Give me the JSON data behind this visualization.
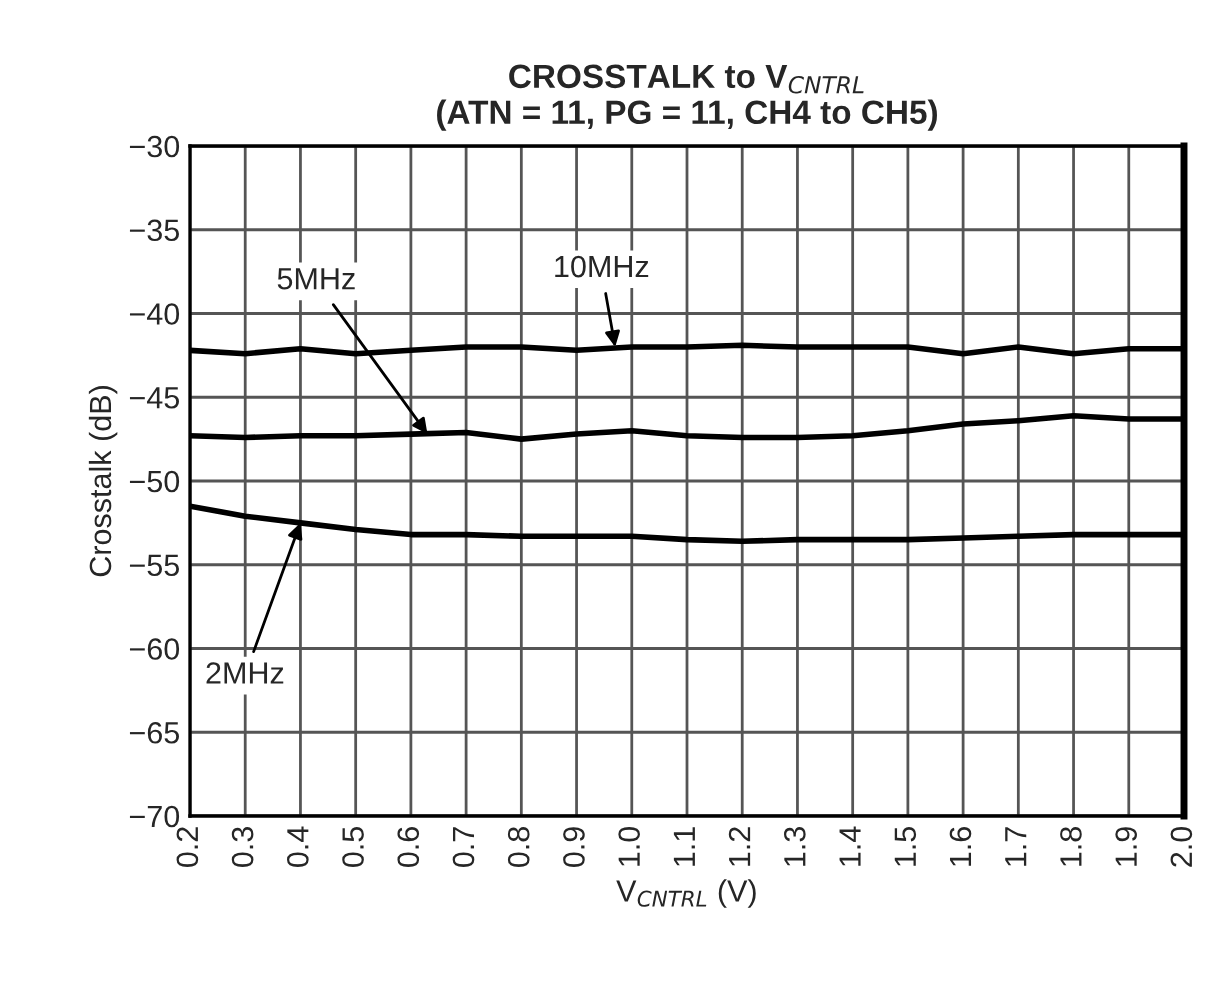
{
  "chart_data": {
    "type": "line",
    "title": "CROSSTALK to V$_{CNTRL}$\n(ATN = 11, PG = 11, CH4 to CH5)",
    "xlabel": "V$_{CNTRL}$ (V)",
    "ylabel": "Crosstalk (dB)",
    "x": [
      0.2,
      0.3,
      0.4,
      0.5,
      0.6,
      0.7,
      0.8,
      0.9,
      1.0,
      1.1,
      1.2,
      1.3,
      1.4,
      1.5,
      1.6,
      1.7,
      1.8,
      1.9,
      2.0
    ],
    "series": [
      {
        "color": "#000000",
        "values": [
          -42.2,
          -42.4,
          -42.1,
          -42.4,
          -42.2,
          -42.0,
          -42.0,
          -42.2,
          -42.0,
          -42.0,
          -41.9,
          -42.0,
          -42.0,
          -42.0,
          -42.4,
          -42.0,
          -42.4,
          -42.1,
          -42.1
        ]
      },
      {
        "color": "#000000",
        "values": [
          -47.3,
          -47.4,
          -47.3,
          -47.3,
          -47.2,
          -47.1,
          -47.5,
          -47.2,
          -47.0,
          -47.3,
          -47.4,
          -47.4,
          -47.3,
          -47.0,
          -46.6,
          -46.4,
          -46.1,
          -46.3,
          -46.3
        ]
      },
      {
        "color": "#000000",
        "values": [
          -51.5,
          -52.1,
          -52.5,
          -52.9,
          -53.2,
          -53.2,
          -53.3,
          -53.3,
          -53.3,
          -53.5,
          -53.6,
          -53.5,
          -53.5,
          -53.5,
          -53.4,
          -53.3,
          -53.2,
          -53.2,
          -53.2
        ]
      }
    ],
    "annotations": [
      {
        "text": "10MHz",
        "x": 0.97,
        "y": -42.0
      },
      {
        "text": "5MHz",
        "x": 0.63,
        "y": -47.2
      },
      {
        "text": "2MHz",
        "x": 0.4,
        "y": -52.5
      }
    ],
    "xlim": [
      0.2,
      2.0
    ],
    "ylim": [
      -70,
      -30
    ],
    "xticks": [
      0.2,
      0.3,
      0.4,
      0.5,
      0.6,
      0.7,
      0.8,
      0.9,
      {
        "value": 1,
        "label": "1.0"
      },
      1.1,
      1.2,
      1.3,
      1.4,
      1.5,
      1.6,
      1.7,
      1.8,
      1.9,
      {
        "value": 2,
        "label": "2.0"
      }
    ],
    "yticks": [
      {
        "value": -70,
        "label": "−70"
      },
      {
        "value": -65,
        "label": "−65"
      },
      {
        "value": -60,
        "label": "−60"
      },
      {
        "value": -55,
        "label": "−55"
      },
      {
        "value": -50,
        "label": "−50"
      },
      {
        "value": -45,
        "label": "−45"
      },
      {
        "value": -40,
        "label": "−40"
      },
      {
        "value": -35,
        "label": "−35"
      },
      {
        "value": -30,
        "label": "−30"
      }
    ],
    "grid": true,
    "legend": false,
    "marker": "none",
    "line_style": "solid"
  }
}
